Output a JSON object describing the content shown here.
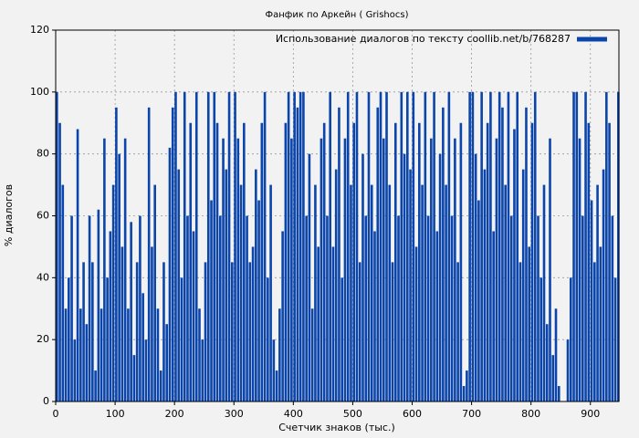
{
  "chart_data": {
    "type": "bar",
    "title": "Фанфик по Аркейн ( Grishocs)",
    "x_label": "Счетчик знаков (тыс.)",
    "y_label": "% диалогов",
    "legend_position": "upper right",
    "grid": true,
    "xlim": [
      0,
      948
    ],
    "xticks": [
      0,
      100,
      200,
      300,
      400,
      500,
      600,
      700,
      800,
      900
    ],
    "ylim": [
      0,
      120
    ],
    "yticks": [
      0,
      20,
      40,
      60,
      80,
      100,
      120
    ],
    "x": [
      0,
      5,
      10,
      15,
      20,
      25,
      30,
      35,
      40,
      45,
      50,
      55,
      60,
      65,
      70,
      75,
      80,
      85,
      90,
      95,
      100,
      105,
      110,
      115,
      120,
      125,
      130,
      135,
      140,
      145,
      150,
      155,
      160,
      165,
      170,
      175,
      180,
      185,
      190,
      195,
      200,
      205,
      210,
      215,
      220,
      225,
      230,
      235,
      240,
      245,
      250,
      255,
      260,
      265,
      270,
      275,
      280,
      285,
      290,
      295,
      300,
      305,
      310,
      315,
      320,
      325,
      330,
      335,
      340,
      345,
      350,
      355,
      360,
      365,
      370,
      375,
      380,
      385,
      390,
      395,
      400,
      405,
      410,
      415,
      420,
      425,
      430,
      435,
      440,
      445,
      450,
      455,
      460,
      465,
      470,
      475,
      480,
      485,
      490,
      495,
      500,
      505,
      510,
      515,
      520,
      525,
      530,
      535,
      540,
      545,
      550,
      555,
      560,
      565,
      570,
      575,
      580,
      585,
      590,
      595,
      600,
      605,
      610,
      615,
      620,
      625,
      630,
      635,
      640,
      645,
      650,
      655,
      660,
      665,
      670,
      675,
      680,
      685,
      690,
      695,
      700,
      705,
      710,
      715,
      720,
      725,
      730,
      735,
      740,
      745,
      750,
      755,
      760,
      765,
      770,
      775,
      780,
      785,
      790,
      795,
      800,
      805,
      810,
      815,
      820,
      825,
      830,
      835,
      840,
      845,
      850,
      855,
      860,
      865,
      870,
      875,
      880,
      885,
      890,
      895,
      900,
      905,
      910,
      915,
      920,
      925,
      930,
      935,
      940,
      945
    ],
    "series": [
      {
        "name": "Использование диалогов по тексту coollib.net/b/768287",
        "color": "#0b45aa",
        "values": [
          100,
          90,
          70,
          30,
          40,
          60,
          20,
          88,
          30,
          45,
          25,
          60,
          45,
          10,
          62,
          30,
          85,
          40,
          55,
          70,
          95,
          80,
          50,
          85,
          30,
          58,
          15,
          45,
          60,
          35,
          20,
          95,
          50,
          70,
          30,
          10,
          45,
          25,
          82,
          95,
          100,
          75,
          40,
          100,
          60,
          90,
          55,
          100,
          30,
          20,
          45,
          100,
          65,
          100,
          90,
          60,
          85,
          75,
          100,
          45,
          100,
          85,
          70,
          90,
          60,
          45,
          50,
          75,
          65,
          90,
          100,
          40,
          70,
          20,
          10,
          30,
          55,
          90,
          100,
          85,
          100,
          95,
          100,
          100,
          60,
          80,
          30,
          70,
          50,
          85,
          90,
          60,
          100,
          50,
          75,
          95,
          40,
          85,
          100,
          70,
          90,
          100,
          45,
          80,
          60,
          100,
          70,
          55,
          95,
          100,
          85,
          100,
          70,
          45,
          90,
          60,
          100,
          80,
          100,
          75,
          100,
          50,
          90,
          70,
          100,
          60,
          85,
          100,
          55,
          80,
          95,
          70,
          100,
          60,
          85,
          45,
          90,
          5,
          10,
          100,
          100,
          80,
          65,
          100,
          75,
          90,
          100,
          55,
          85,
          100,
          95,
          70,
          100,
          60,
          88,
          100,
          45,
          75,
          95,
          50,
          90,
          100,
          60,
          40,
          70,
          25,
          85,
          15,
          30,
          5,
          0,
          0,
          20,
          40,
          100,
          100,
          85,
          60,
          100,
          90,
          65,
          45,
          70,
          50,
          75,
          100,
          90,
          60,
          40,
          100
        ]
      }
    ]
  }
}
